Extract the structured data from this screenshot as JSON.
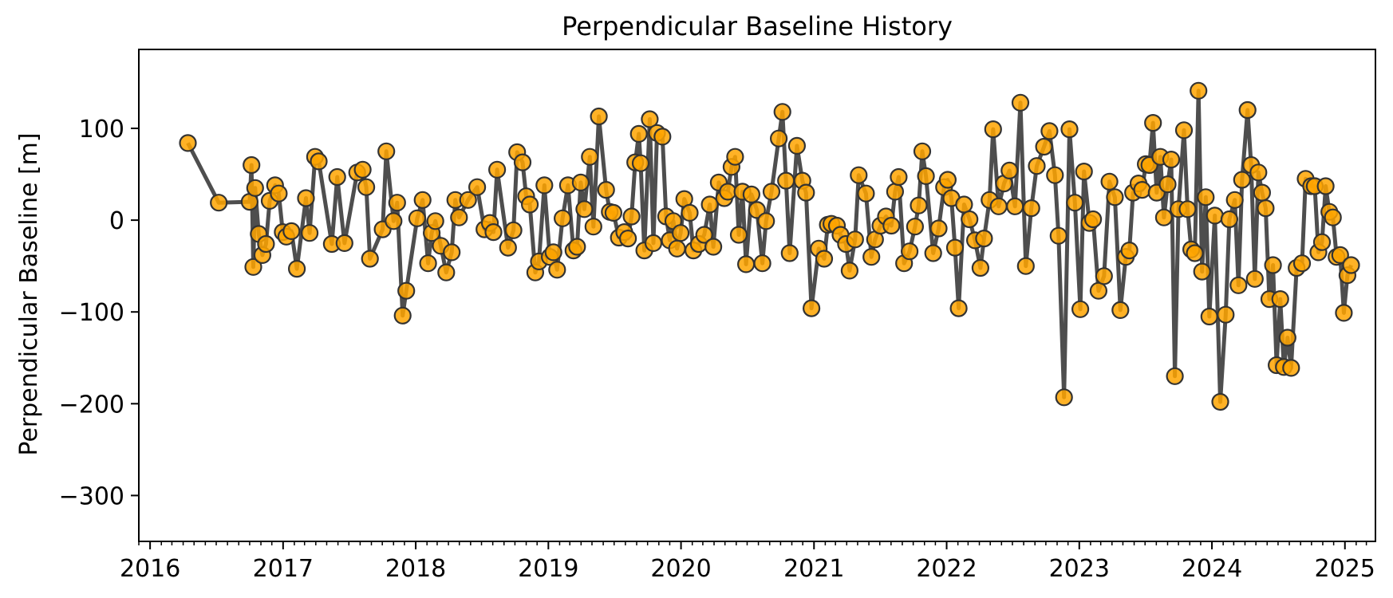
{
  "chart_data": {
    "type": "line",
    "title": "Perpendicular Baseline History",
    "xlabel": "",
    "ylabel": "Perpendicular Baseline [m]",
    "x_ticks": [
      "2016",
      "2017",
      "2018",
      "2019",
      "2020",
      "2021",
      "2022",
      "2023",
      "2024",
      "2025"
    ],
    "y_ticks": [
      100,
      0,
      -100,
      -200,
      -300
    ],
    "xlim": [
      "2015-12-01",
      "2025-03-26"
    ],
    "ylim": [
      -350,
      186
    ],
    "grid": false,
    "legend": "none",
    "line_color": "#444444",
    "marker_color": "#ffa500",
    "marker_edge_color": "#333333",
    "series": [
      {
        "x": [
          "2016-04-14",
          "2016-07-08",
          "2016-10-01",
          "2016-10-06",
          "2016-10-11",
          "2016-10-16",
          "2016-10-26",
          "2016-11-05",
          "2016-11-15",
          "2016-11-25",
          "2016-12-10",
          "2016-12-20",
          "2016-12-31",
          "2017-01-10",
          "2017-01-24",
          "2017-02-08",
          "2017-03-05",
          "2017-03-15",
          "2017-03-30",
          "2017-04-09",
          "2017-05-15",
          "2017-05-30",
          "2017-06-19",
          "2017-07-24",
          "2017-08-08",
          "2017-08-18",
          "2017-08-28",
          "2017-10-02",
          "2017-10-12",
          "2017-11-01",
          "2017-11-11",
          "2017-11-26",
          "2017-12-06",
          "2018-01-05",
          "2018-01-20",
          "2018-02-04",
          "2018-02-14",
          "2018-02-24",
          "2018-03-11",
          "2018-03-26",
          "2018-04-10",
          "2018-04-20",
          "2018-04-30",
          "2018-05-25",
          "2018-06-19",
          "2018-07-09",
          "2018-07-24",
          "2018-08-03",
          "2018-08-13",
          "2018-09-12",
          "2018-09-27",
          "2018-10-07",
          "2018-10-22",
          "2018-11-01",
          "2018-11-11",
          "2018-11-26",
          "2018-12-06",
          "2018-12-21",
          "2019-01-05",
          "2019-01-15",
          "2019-01-25",
          "2019-02-09",
          "2019-02-24",
          "2019-03-11",
          "2019-03-21",
          "2019-03-31",
          "2019-04-10",
          "2019-04-25",
          "2019-05-05",
          "2019-05-20",
          "2019-06-09",
          "2019-06-19",
          "2019-06-29",
          "2019-07-14",
          "2019-07-29",
          "2019-08-08",
          "2019-08-18",
          "2019-08-28",
          "2019-09-07",
          "2019-09-12",
          "2019-09-22",
          "2019-10-07",
          "2019-10-17",
          "2019-10-27",
          "2019-11-11",
          "2019-11-21",
          "2019-12-01",
          "2019-12-11",
          "2019-12-21",
          "2019-12-31",
          "2020-01-10",
          "2020-01-25",
          "2020-02-04",
          "2020-02-19",
          "2020-03-05",
          "2020-03-20",
          "2020-03-30",
          "2020-04-14",
          "2020-04-29",
          "2020-05-09",
          "2020-05-19",
          "2020-05-29",
          "2020-06-08",
          "2020-06-18",
          "2020-06-28",
          "2020-07-13",
          "2020-07-28",
          "2020-08-12",
          "2020-08-22",
          "2020-09-06",
          "2020-09-26",
          "2020-10-06",
          "2020-10-16",
          "2020-10-26",
          "2020-11-15",
          "2020-11-30",
          "2020-12-10",
          "2020-12-25",
          "2021-01-14",
          "2021-01-29",
          "2021-02-08",
          "2021-02-18",
          "2021-03-05",
          "2021-03-15",
          "2021-03-30",
          "2021-04-09",
          "2021-04-24",
          "2021-05-04",
          "2021-05-24",
          "2021-06-08",
          "2021-06-18",
          "2021-07-03",
          "2021-07-18",
          "2021-08-02",
          "2021-08-12",
          "2021-08-22",
          "2021-09-06",
          "2021-09-21",
          "2021-10-06",
          "2021-10-16",
          "2021-10-26",
          "2021-11-05",
          "2021-11-25",
          "2021-12-10",
          "2021-12-25",
          "2022-01-04",
          "2022-01-14",
          "2022-01-24",
          "2022-02-03",
          "2022-02-18",
          "2022-03-05",
          "2022-03-20",
          "2022-04-04",
          "2022-04-14",
          "2022-04-29",
          "2022-05-09",
          "2022-05-24",
          "2022-06-08",
          "2022-06-23",
          "2022-07-08",
          "2022-07-23",
          "2022-08-07",
          "2022-08-22",
          "2022-09-06",
          "2022-09-26",
          "2022-10-11",
          "2022-10-26",
          "2022-11-05",
          "2022-11-20",
          "2022-12-05",
          "2022-12-20",
          "2023-01-04",
          "2023-01-14",
          "2023-01-29",
          "2023-02-08",
          "2023-02-23",
          "2023-03-10",
          "2023-03-25",
          "2023-04-09",
          "2023-04-24",
          "2023-05-09",
          "2023-05-19",
          "2023-05-29",
          "2023-06-13",
          "2023-06-23",
          "2023-07-03",
          "2023-07-13",
          "2023-07-23",
          "2023-08-02",
          "2023-08-12",
          "2023-08-22",
          "2023-09-01",
          "2023-09-11",
          "2023-09-21",
          "2023-10-01",
          "2023-10-16",
          "2023-10-26",
          "2023-11-05",
          "2023-11-15",
          "2023-11-25",
          "2023-12-05",
          "2023-12-15",
          "2023-12-25",
          "2024-01-09",
          "2024-01-24",
          "2024-02-08",
          "2024-02-18",
          "2024-03-04",
          "2024-03-14",
          "2024-03-24",
          "2024-04-08",
          "2024-04-18",
          "2024-04-28",
          "2024-05-08",
          "2024-05-18",
          "2024-05-28",
          "2024-06-07",
          "2024-06-17",
          "2024-06-27",
          "2024-07-07",
          "2024-07-17",
          "2024-07-27",
          "2024-08-06",
          "2024-08-21",
          "2024-09-05",
          "2024-09-15",
          "2024-09-30",
          "2024-10-10",
          "2024-10-20",
          "2024-10-30",
          "2024-11-09",
          "2024-11-19",
          "2024-11-29",
          "2024-12-09",
          "2024-12-19",
          "2024-12-29",
          "2025-01-08",
          "2025-01-18"
        ],
        "y": [
          84,
          19,
          20,
          60,
          -51,
          35,
          -15,
          -38,
          -26,
          21,
          38,
          29,
          -13,
          -18,
          -12,
          -53,
          24,
          -14,
          69,
          64,
          -26,
          47,
          -25,
          52,
          55,
          36,
          -42,
          -10,
          75,
          -1,
          19,
          -104,
          -77,
          2,
          22,
          -47,
          -14,
          -1,
          -28,
          -57,
          -35,
          22,
          3,
          22,
          36,
          -10,
          -3,
          -13,
          55,
          -30,
          -11,
          74,
          63,
          26,
          17,
          -57,
          -45,
          38,
          -40,
          -35,
          -54,
          2,
          38,
          -33,
          -29,
          41,
          12,
          69,
          -7,
          113,
          33,
          9,
          8,
          -19,
          -13,
          -20,
          4,
          63,
          94,
          62,
          -33,
          110,
          -25,
          95,
          91,
          4,
          -22,
          -1,
          -31,
          -14,
          23,
          8,
          -33,
          -26,
          -16,
          17,
          -29,
          41,
          24,
          31,
          58,
          69,
          -16,
          31,
          -48,
          28,
          11,
          -47,
          -1,
          31,
          89,
          118,
          43,
          -36,
          81,
          43,
          30,
          -96,
          -31,
          -42,
          -5,
          -4,
          -6,
          -16,
          -26,
          -55,
          -21,
          49,
          29,
          -40,
          -21,
          -6,
          4,
          -6,
          31,
          47,
          -47,
          -34,
          -7,
          16,
          75,
          48,
          -36,
          -9,
          36,
          44,
          24,
          -30,
          -96,
          17,
          1,
          -22,
          -52,
          -20,
          22,
          99,
          15,
          40,
          54,
          15,
          128,
          -50,
          13,
          59,
          80,
          97,
          49,
          -17,
          -193,
          99,
          19,
          -97,
          53,
          -3,
          1,
          -77,
          -61,
          42,
          25,
          -98,
          -40,
          -33,
          30,
          40,
          33,
          61,
          60,
          106,
          30,
          69,
          3,
          39,
          66,
          -170,
          12,
          98,
          12,
          -32,
          -36,
          141,
          -56,
          25,
          -105,
          5,
          -198,
          -103,
          1,
          22,
          -71,
          44,
          120,
          60,
          -64,
          52,
          30,
          13,
          -86,
          -49,
          -158,
          -86,
          -160,
          -128,
          -161,
          -52,
          -47,
          45,
          37,
          37,
          -35,
          -24,
          37,
          9,
          3,
          -40,
          -38,
          -101,
          -60,
          -49
        ]
      }
    ]
  }
}
